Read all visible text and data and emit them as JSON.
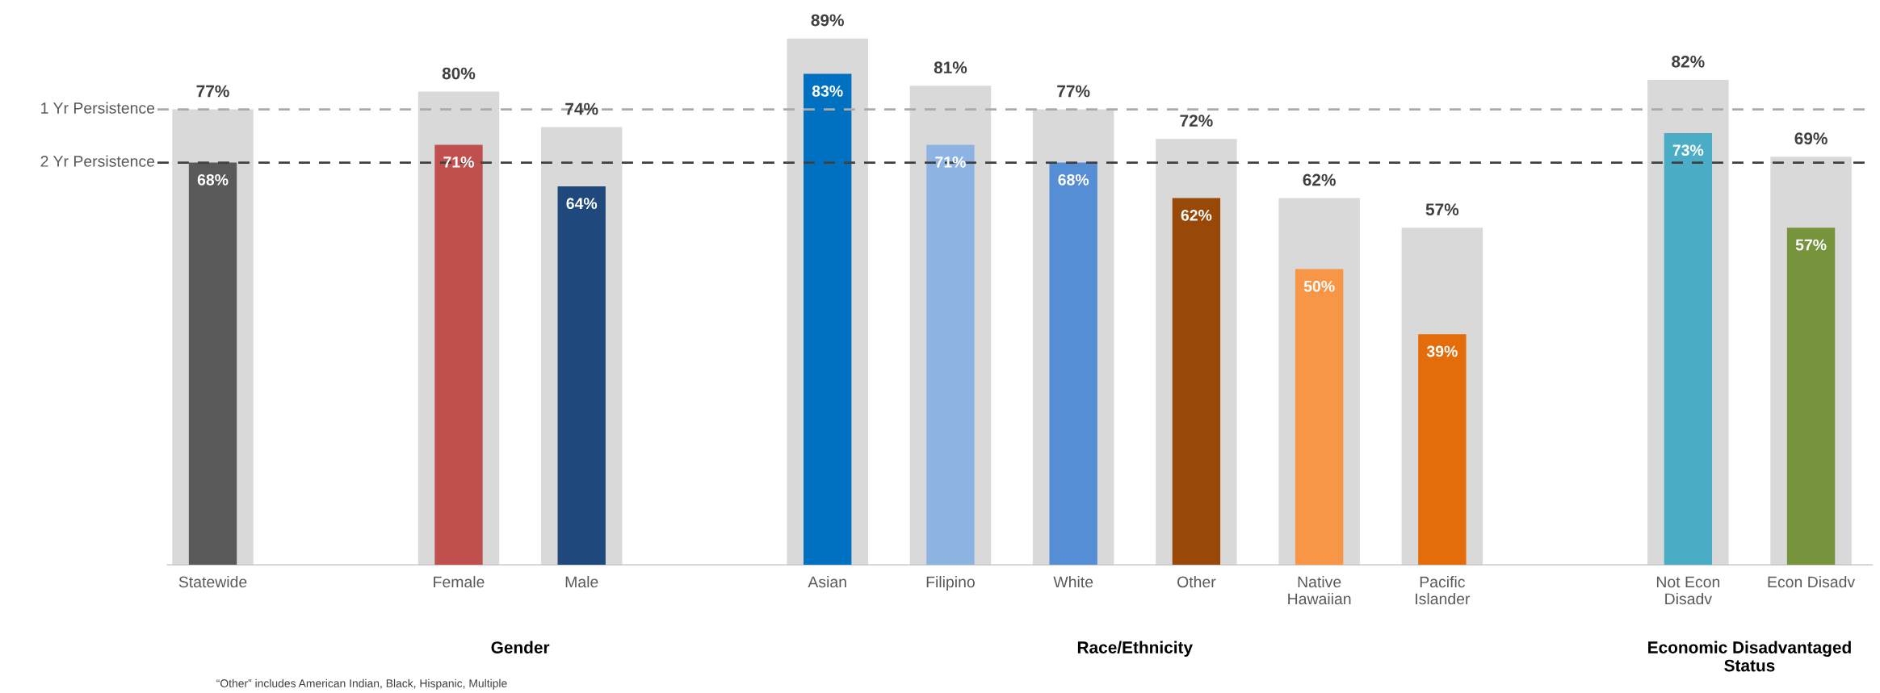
{
  "chart_data": {
    "type": "bar",
    "categories": [
      "Statewide",
      null,
      "Female",
      "Male",
      null,
      "Asian",
      "Filipino",
      "White",
      "Other",
      "Native\nHawaiian",
      "Pacific\nIslander",
      null,
      "Not Econ\nDisadv",
      "Econ Disadv"
    ],
    "series": [
      {
        "color": "#d9d9d9",
        "values": [
          77,
          null,
          80,
          74,
          null,
          89,
          81,
          77,
          72,
          62,
          57,
          null,
          82,
          69
        ],
        "value_labels": [
          "77%",
          null,
          "80%",
          "74%",
          null,
          "89%",
          "81%",
          "77%",
          "72%",
          "62%",
          "57%",
          null,
          "82%",
          "69%"
        ]
      },
      {
        "colors": [
          "#595959",
          null,
          "#c0504d",
          "#1f497d",
          null,
          "#0070c0",
          "#8db3e2",
          "#558ed5",
          "#984807",
          "#f79646",
          "#e46c0a",
          null,
          "#4bacc6",
          "#77933c"
        ],
        "values": [
          68,
          null,
          71,
          64,
          null,
          83,
          71,
          68,
          62,
          50,
          39,
          null,
          73,
          57
        ],
        "value_labels": [
          "68%",
          null,
          "71%",
          "64%",
          null,
          "83%",
          "71%",
          "68%",
          "62%",
          "50%",
          "39%",
          null,
          "73%",
          "57%"
        ]
      }
    ],
    "relative": false,
    "ref_lines": [
      {
        "axis": "y",
        "value": 77,
        "label": "1 Yr Persistence",
        "color": "#aaaaaa",
        "line_style": "dashed"
      },
      {
        "axis": "y",
        "value": 68,
        "label": "2 Yr Persistence",
        "color": "#404040",
        "line_style": "dashed"
      }
    ],
    "annotations": [
      "Gender",
      "Race/Ethnicity",
      "Economic Disadvantaged\nStatus",
      "“Other” includes American Indian, Black, Hispanic, Multiple"
    ],
    "grid": false,
    "legend": false
  }
}
